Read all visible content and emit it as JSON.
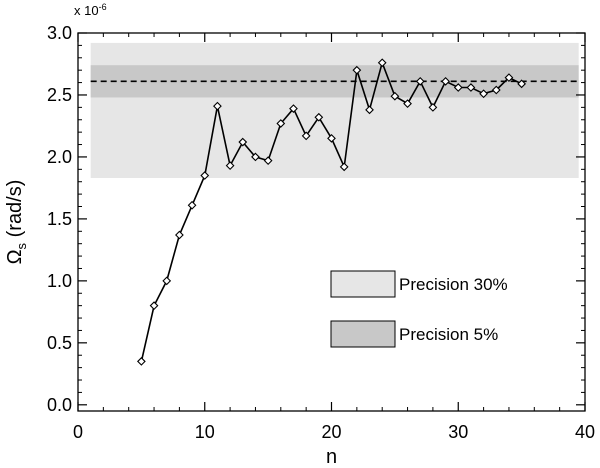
{
  "chart_data": {
    "type": "line",
    "title": "",
    "xlabel": "n",
    "ylabel": "Ω",
    "ylabel_sub": "s",
    "ylabel_unit": " (rad/s)",
    "y_multiplier": "x 10",
    "y_multiplier_exp": "-6",
    "xlim": [
      0,
      40
    ],
    "ylim": [
      -0.05,
      3.0
    ],
    "x_ticks": [
      0,
      10,
      20,
      30,
      40
    ],
    "x_tick_labels": [
      "0",
      "10",
      "20",
      "30",
      "40"
    ],
    "y_ticks": [
      0.0,
      0.5,
      1.0,
      1.5,
      2.0,
      2.5,
      3.0
    ],
    "y_tick_labels": [
      "0.0",
      "0.5",
      "1.0",
      "1.5",
      "2.0",
      "2.5",
      "3.0"
    ],
    "grid": false,
    "legend_position": "lower-right",
    "reference_line": {
      "y": 2.61,
      "style": "dashed",
      "color": "#000000"
    },
    "bands": [
      {
        "name": "Precision 30%",
        "y_low": 1.83,
        "y_high": 2.92,
        "x_from": 1,
        "x_to": 39.5,
        "color": "#e6e6e6"
      },
      {
        "name": "Precision 5%",
        "y_low": 2.48,
        "y_high": 2.74,
        "x_from": 1,
        "x_to": 39.5,
        "color": "#c8c8c8"
      }
    ],
    "series": [
      {
        "marker": "diamond",
        "color": "#000000",
        "x": [
          5,
          6,
          7,
          8,
          9,
          10,
          11,
          12,
          13,
          14,
          15,
          16,
          17,
          18,
          19,
          20,
          21,
          22,
          23,
          24,
          25,
          26,
          27,
          28,
          29,
          30,
          31,
          32,
          33,
          34,
          35
        ],
        "y": [
          0.35,
          0.8,
          1.0,
          1.37,
          1.61,
          1.85,
          2.41,
          1.93,
          2.12,
          2.0,
          1.97,
          2.27,
          2.39,
          2.17,
          2.32,
          2.15,
          1.92,
          2.7,
          2.38,
          2.76,
          2.49,
          2.43,
          2.61,
          2.4,
          2.61,
          2.56,
          2.56,
          2.51,
          2.54,
          2.64,
          2.59
        ]
      }
    ]
  }
}
